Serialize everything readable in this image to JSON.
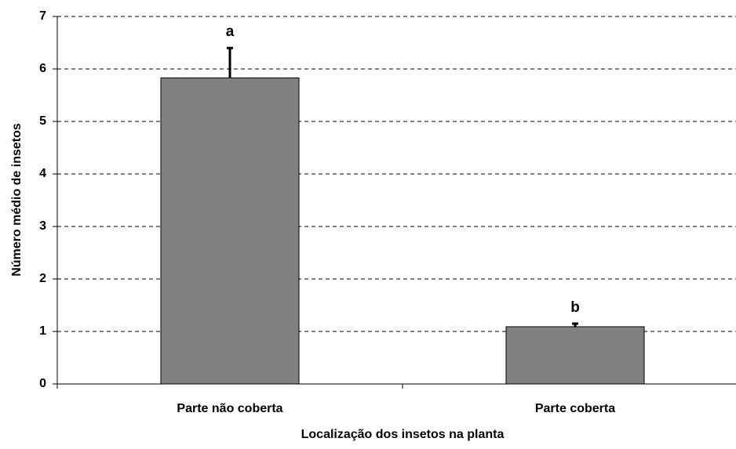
{
  "chart_data": {
    "type": "bar",
    "xlabel": "Localização dos insetos na planta",
    "ylabel": "Número médio de insetos",
    "categories": [
      "Parte não coberta",
      "Parte coberta"
    ],
    "values": [
      5.83,
      1.09
    ],
    "errors": [
      0.57,
      0.06
    ],
    "letters": [
      "a",
      "b"
    ],
    "color": "#808080",
    "ylim": [
      0,
      7
    ],
    "yticks": [
      0,
      1,
      2,
      3,
      4,
      5,
      6,
      7
    ],
    "grid": true
  }
}
